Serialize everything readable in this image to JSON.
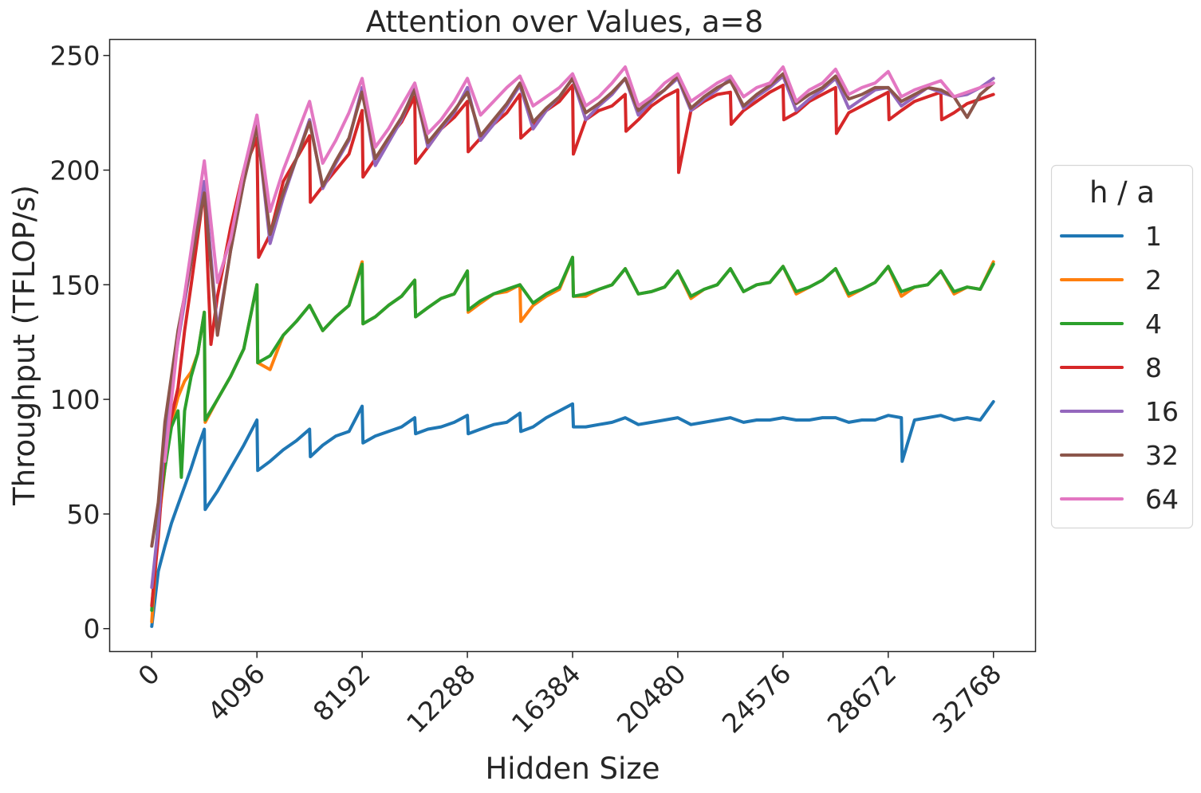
{
  "chart_data": {
    "type": "line",
    "title": "Attention over Values, a=8",
    "xlabel": "Hidden Size",
    "ylabel": "Throughput (TFLOP/s)",
    "xlim": [
      -1638,
      34406
    ],
    "ylim": [
      -10,
      257
    ],
    "xticks": [
      0,
      4096,
      8192,
      12288,
      16384,
      20480,
      24576,
      28672,
      32768
    ],
    "xtick_labels": [
      "0",
      "4096",
      "8192",
      "12288",
      "16384",
      "20480",
      "24576",
      "28672",
      "32768"
    ],
    "yticks": [
      0,
      50,
      100,
      150,
      200,
      250
    ],
    "ytick_labels": [
      "0",
      "50",
      "100",
      "150",
      "200",
      "250"
    ],
    "grid": false,
    "legend": {
      "title": "h / a",
      "placement": "center-right-outside"
    },
    "series": [
      {
        "name": "1",
        "color": "#1f77b4",
        "x": [
          0,
          256,
          512,
          768,
          1024,
          1280,
          1536,
          1792,
          2048,
          2080,
          2560,
          3072,
          3584,
          4096,
          4128,
          4608,
          5120,
          5632,
          6144,
          6176,
          6656,
          7168,
          7680,
          8192,
          8224,
          8704,
          9216,
          9728,
          10240,
          10272,
          10752,
          11264,
          11776,
          12288,
          12320,
          12800,
          13312,
          13824,
          14336,
          14368,
          14848,
          15360,
          15872,
          16384,
          16416,
          16896,
          17408,
          17920,
          18432,
          18944,
          19456,
          19968,
          20480,
          20992,
          21504,
          22016,
          22528,
          23040,
          23552,
          24064,
          24576,
          25088,
          25600,
          26112,
          26624,
          27136,
          27648,
          28160,
          28672,
          29184,
          29216,
          29696,
          30208,
          30720,
          31232,
          31744,
          32256,
          32768
        ],
        "y": [
          1,
          25,
          36,
          46,
          54,
          62,
          70,
          79,
          87,
          52,
          60,
          70,
          80,
          91,
          69,
          73,
          78,
          82,
          87,
          75,
          80,
          84,
          86,
          97,
          81,
          84,
          86,
          88,
          92,
          85,
          87,
          88,
          90,
          93,
          85,
          87,
          89,
          90,
          94,
          86,
          88,
          92,
          95,
          98,
          88,
          88,
          89,
          90,
          92,
          89,
          90,
          91,
          92,
          89,
          90,
          91,
          92,
          90,
          91,
          91,
          92,
          91,
          91,
          92,
          92,
          90,
          91,
          91,
          93,
          92,
          73,
          91,
          92,
          93,
          91,
          92,
          91,
          99
        ]
      },
      {
        "name": "2",
        "color": "#ff7f0e",
        "x": [
          0,
          256,
          512,
          768,
          1024,
          1280,
          1536,
          1792,
          2048,
          2080,
          2560,
          3072,
          3584,
          4096,
          4128,
          4608,
          5120,
          5632,
          6144,
          6656,
          7168,
          7680,
          8192,
          8224,
          8704,
          9216,
          9728,
          10240,
          10272,
          10752,
          11264,
          11776,
          12288,
          12320,
          12800,
          13312,
          13824,
          14336,
          14368,
          14848,
          15360,
          15872,
          16384,
          16416,
          16896,
          17408,
          17920,
          18432,
          18944,
          19456,
          19968,
          20480,
          20992,
          21504,
          22016,
          22528,
          23040,
          23552,
          24064,
          24576,
          25088,
          25600,
          26112,
          26624,
          27136,
          27648,
          28160,
          28672,
          29184,
          29696,
          30208,
          30720,
          31232,
          31744,
          32256,
          32768
        ],
        "y": [
          3,
          45,
          70,
          90,
          101,
          108,
          112,
          120,
          138,
          90,
          100,
          110,
          122,
          150,
          116,
          113,
          128,
          134,
          141,
          130,
          136,
          141,
          160,
          133,
          136,
          141,
          145,
          152,
          136,
          140,
          144,
          146,
          156,
          138,
          142,
          146,
          147,
          150,
          134,
          141,
          145,
          148,
          162,
          145,
          145,
          148,
          150,
          157,
          146,
          147,
          149,
          156,
          144,
          148,
          150,
          157,
          147,
          150,
          151,
          158,
          146,
          149,
          152,
          157,
          145,
          148,
          151,
          158,
          145,
          149,
          150,
          156,
          146,
          149,
          148,
          160
        ]
      },
      {
        "name": "4",
        "color": "#2ca02c",
        "x": [
          0,
          256,
          512,
          768,
          1024,
          1152,
          1280,
          1536,
          1792,
          2048,
          2080,
          2560,
          3072,
          3584,
          4096,
          4128,
          4608,
          5120,
          5632,
          6144,
          6656,
          7168,
          7680,
          8192,
          8224,
          8704,
          9216,
          9728,
          10240,
          10272,
          10752,
          11264,
          11776,
          12288,
          12320,
          12800,
          13312,
          13824,
          14336,
          14848,
          15360,
          15872,
          16384,
          16416,
          16896,
          17408,
          17920,
          18432,
          18944,
          19456,
          19968,
          20480,
          20992,
          21504,
          22016,
          22528,
          23040,
          23552,
          24064,
          24576,
          25088,
          25600,
          26112,
          26624,
          27136,
          27648,
          28160,
          28672,
          29184,
          29696,
          30208,
          30720,
          31232,
          31744,
          32256,
          32768
        ],
        "y": [
          8,
          48,
          70,
          88,
          95,
          66,
          95,
          110,
          120,
          138,
          91,
          100,
          110,
          122,
          150,
          116,
          119,
          128,
          134,
          141,
          130,
          136,
          141,
          159,
          133,
          136,
          141,
          145,
          152,
          136,
          140,
          144,
          146,
          156,
          139,
          143,
          146,
          148,
          150,
          142,
          146,
          149,
          162,
          145,
          146,
          148,
          150,
          157,
          146,
          147,
          149,
          156,
          145,
          148,
          150,
          157,
          147,
          150,
          151,
          158,
          147,
          149,
          152,
          157,
          146,
          148,
          151,
          158,
          147,
          149,
          150,
          156,
          147,
          149,
          148,
          159
        ]
      },
      {
        "name": "8",
        "color": "#d62728",
        "x": [
          0,
          256,
          512,
          1024,
          1280,
          1536,
          2048,
          2304,
          2560,
          3072,
          3584,
          4096,
          4160,
          4608,
          5120,
          5632,
          6144,
          6176,
          6656,
          7168,
          7680,
          8192,
          8224,
          8704,
          9216,
          9728,
          10240,
          10272,
          10752,
          11264,
          11776,
          12288,
          12320,
          12800,
          13312,
          13824,
          14336,
          14368,
          14848,
          15360,
          15872,
          16384,
          16416,
          16896,
          17408,
          17920,
          18432,
          18464,
          18944,
          19456,
          19968,
          20480,
          20512,
          20992,
          21504,
          22016,
          22528,
          22560,
          23040,
          23552,
          24064,
          24576,
          24608,
          25088,
          25600,
          26112,
          26624,
          26656,
          27136,
          27648,
          28160,
          28672,
          28704,
          29184,
          29696,
          30208,
          30720,
          30752,
          31232,
          31744,
          32256,
          32768
        ],
        "y": [
          10,
          40,
          80,
          105,
          130,
          150,
          192,
          124,
          145,
          175,
          200,
          214,
          162,
          172,
          195,
          205,
          215,
          186,
          193,
          200,
          207,
          226,
          197,
          205,
          214,
          221,
          232,
          203,
          210,
          218,
          223,
          230,
          208,
          214,
          220,
          225,
          233,
          214,
          219,
          226,
          230,
          237,
          207,
          222,
          226,
          228,
          233,
          217,
          222,
          228,
          232,
          235,
          199,
          226,
          230,
          233,
          234,
          220,
          226,
          230,
          234,
          237,
          222,
          225,
          230,
          233,
          236,
          216,
          225,
          228,
          231,
          234,
          222,
          226,
          230,
          232,
          234,
          222,
          225,
          229,
          231,
          233
        ]
      },
      {
        "name": "16",
        "color": "#9467bd",
        "x": [
          0,
          256,
          512,
          1024,
          1536,
          2048,
          2560,
          3072,
          3584,
          4096,
          4608,
          5120,
          5632,
          6144,
          6656,
          7168,
          7680,
          8192,
          8704,
          9216,
          9728,
          10240,
          10752,
          11264,
          11776,
          12288,
          12800,
          13312,
          13824,
          14336,
          14848,
          15360,
          15872,
          16384,
          16896,
          17408,
          17920,
          18432,
          18944,
          19456,
          19968,
          20480,
          20992,
          21504,
          22016,
          22528,
          23040,
          23552,
          24064,
          24576,
          25088,
          25600,
          26112,
          26624,
          27136,
          27648,
          28160,
          28672,
          29184,
          29696,
          30208,
          30720,
          31232,
          31744,
          32256,
          32768
        ],
        "y": [
          18,
          45,
          85,
          125,
          160,
          195,
          130,
          165,
          195,
          220,
          168,
          188,
          205,
          222,
          192,
          203,
          213,
          236,
          202,
          212,
          222,
          236,
          210,
          218,
          225,
          236,
          213,
          220,
          228,
          237,
          218,
          226,
          232,
          240,
          222,
          228,
          233,
          240,
          224,
          230,
          235,
          240,
          226,
          231,
          235,
          240,
          227,
          232,
          236,
          241,
          226,
          231,
          235,
          240,
          227,
          231,
          235,
          236,
          228,
          232,
          236,
          234,
          232,
          233,
          236,
          240
        ]
      },
      {
        "name": "32",
        "color": "#8c564b",
        "x": [
          0,
          256,
          512,
          1024,
          1536,
          2048,
          2560,
          3072,
          3584,
          4096,
          4608,
          5120,
          5632,
          6144,
          6656,
          7168,
          7680,
          8192,
          8704,
          9216,
          9728,
          10240,
          10752,
          11264,
          11776,
          12288,
          12800,
          13312,
          13824,
          14336,
          14848,
          15360,
          15872,
          16384,
          16896,
          17408,
          17920,
          18432,
          18944,
          19456,
          19968,
          20480,
          20992,
          21504,
          22016,
          22528,
          23040,
          23552,
          24064,
          24576,
          25088,
          25600,
          26112,
          26624,
          27136,
          27648,
          28160,
          28672,
          29184,
          29696,
          30208,
          30720,
          31232,
          31744,
          32256,
          32768
        ],
        "y": [
          36,
          55,
          90,
          130,
          160,
          190,
          128,
          165,
          195,
          219,
          172,
          190,
          205,
          221,
          193,
          204,
          214,
          234,
          205,
          214,
          223,
          235,
          212,
          219,
          226,
          234,
          215,
          222,
          229,
          238,
          221,
          227,
          232,
          240,
          225,
          229,
          234,
          240,
          226,
          231,
          235,
          241,
          227,
          232,
          236,
          239,
          228,
          233,
          237,
          242,
          229,
          233,
          236,
          241,
          231,
          233,
          236,
          236,
          230,
          233,
          236,
          235,
          232,
          223,
          233,
          238
        ]
      },
      {
        "name": "64",
        "color": "#e377c2",
        "x": [
          512,
          1024,
          1536,
          2048,
          2560,
          3072,
          3584,
          4096,
          4608,
          5120,
          5632,
          6144,
          6656,
          7168,
          7680,
          8192,
          8704,
          9216,
          9728,
          10240,
          10752,
          11264,
          11776,
          12288,
          12800,
          13312,
          13824,
          14336,
          14848,
          15360,
          15872,
          16384,
          16896,
          17408,
          17920,
          18432,
          18944,
          19456,
          19968,
          20480,
          20992,
          21504,
          22016,
          22528,
          23040,
          23552,
          24064,
          24576,
          25088,
          25600,
          26112,
          26624,
          27136,
          27648,
          28160,
          28672,
          29184,
          29696,
          30208,
          30720,
          31232,
          31744,
          32256,
          32768
        ],
        "y": [
          73,
          126,
          165,
          204,
          151,
          170,
          200,
          224,
          182,
          200,
          215,
          230,
          203,
          213,
          225,
          240,
          210,
          218,
          228,
          238,
          216,
          222,
          230,
          240,
          224,
          230,
          236,
          241,
          228,
          232,
          236,
          242,
          228,
          232,
          238,
          245,
          228,
          232,
          238,
          242,
          230,
          234,
          238,
          241,
          232,
          236,
          238,
          245,
          230,
          235,
          238,
          244,
          233,
          236,
          238,
          243,
          232,
          235,
          237,
          239,
          232,
          234,
          236,
          238
        ]
      }
    ]
  }
}
